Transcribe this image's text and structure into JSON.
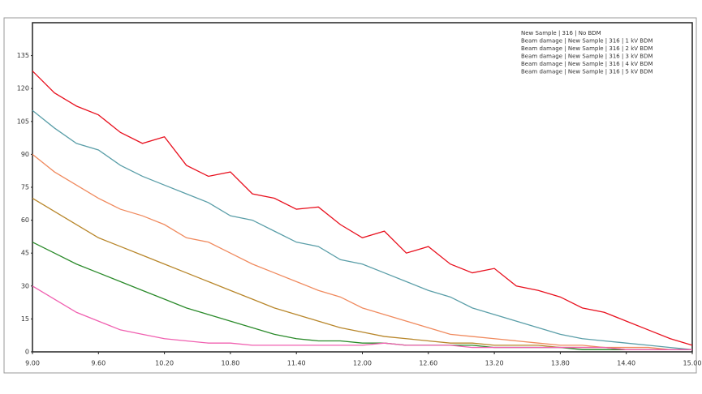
{
  "chart_data": {
    "type": "line",
    "x": [
      9.0,
      9.2,
      9.4,
      9.6,
      9.8,
      10.0,
      10.2,
      10.4,
      10.6,
      10.8,
      11.0,
      11.2,
      11.4,
      11.6,
      11.8,
      12.0,
      12.2,
      12.4,
      12.6,
      12.8,
      13.0,
      13.2,
      13.4,
      13.6,
      13.8,
      14.0,
      14.2,
      14.4,
      14.6,
      14.8,
      15.0
    ],
    "series": [
      {
        "name": "New Sample | 316 | No BDM",
        "color": "#e8101e",
        "values": [
          128,
          118,
          112,
          108,
          100,
          95,
          98,
          85,
          80,
          82,
          72,
          70,
          65,
          66,
          58,
          52,
          55,
          45,
          48,
          40,
          36,
          38,
          30,
          28,
          25,
          20,
          18,
          14,
          10,
          6,
          3
        ]
      },
      {
        "name": "Beam damage | New Sample | 316 | 1 kV BDM",
        "color": "#5a9ea8",
        "values": [
          110,
          102,
          95,
          92,
          85,
          80,
          76,
          72,
          68,
          62,
          60,
          55,
          50,
          48,
          42,
          40,
          36,
          32,
          28,
          25,
          20,
          17,
          14,
          11,
          8,
          6,
          5,
          4,
          3,
          2,
          1
        ]
      },
      {
        "name": "Beam damage | New Sample | 316 | 2 kV BDM",
        "color": "#f08a5e",
        "values": [
          90,
          82,
          76,
          70,
          65,
          62,
          58,
          52,
          50,
          45,
          40,
          36,
          32,
          28,
          25,
          20,
          17,
          14,
          11,
          8,
          7,
          6,
          5,
          4,
          3,
          3,
          2,
          2,
          2,
          1,
          1
        ]
      },
      {
        "name": "Beam damage | New Sample | 316 | 3 kV BDM",
        "color": "#b8862a",
        "values": [
          70,
          64,
          58,
          52,
          48,
          44,
          40,
          36,
          32,
          28,
          24,
          20,
          17,
          14,
          11,
          9,
          7,
          6,
          5,
          4,
          4,
          3,
          3,
          3,
          2,
          2,
          2,
          1,
          1,
          1,
          1
        ]
      },
      {
        "name": "Beam damage | New Sample | 316 | 4 kV BDM",
        "color": "#2a8a2a",
        "values": [
          50,
          45,
          40,
          36,
          32,
          28,
          24,
          20,
          17,
          14,
          11,
          8,
          6,
          5,
          5,
          4,
          4,
          3,
          3,
          3,
          3,
          2,
          2,
          2,
          2,
          1,
          1,
          1,
          1,
          1,
          1
        ]
      },
      {
        "name": "Beam damage | New Sample | 316 | 5 kV BDM",
        "color": "#f060b0",
        "values": [
          30,
          24,
          18,
          14,
          10,
          8,
          6,
          5,
          4,
          4,
          3,
          3,
          3,
          3,
          3,
          3,
          4,
          3,
          3,
          3,
          2,
          2,
          2,
          2,
          2,
          2,
          2,
          1,
          1,
          1,
          1
        ]
      }
    ],
    "xlim": [
      9,
      15
    ],
    "ylim": [
      0,
      150
    ],
    "xticks": [
      {
        "value": 9,
        "label": "9.00"
      },
      {
        "value": 9.6,
        "label": "9.60"
      },
      {
        "value": 10.2,
        "label": "10.20"
      },
      {
        "value": 10.8,
        "label": "10.80"
      },
      {
        "value": 11.4,
        "label": "11.40"
      },
      {
        "value": 12,
        "label": "12.00"
      },
      {
        "value": 12.6,
        "label": "12.60"
      },
      {
        "value": 13.2,
        "label": "13.20"
      },
      {
        "value": 13.8,
        "label": "13.80"
      },
      {
        "value": 14.4,
        "label": "14.40"
      },
      {
        "value": 15,
        "label": "15.00"
      }
    ],
    "yticks": [
      0,
      15,
      30,
      45,
      60,
      75,
      90,
      105,
      120,
      135
    ],
    "legend": "upper right"
  }
}
